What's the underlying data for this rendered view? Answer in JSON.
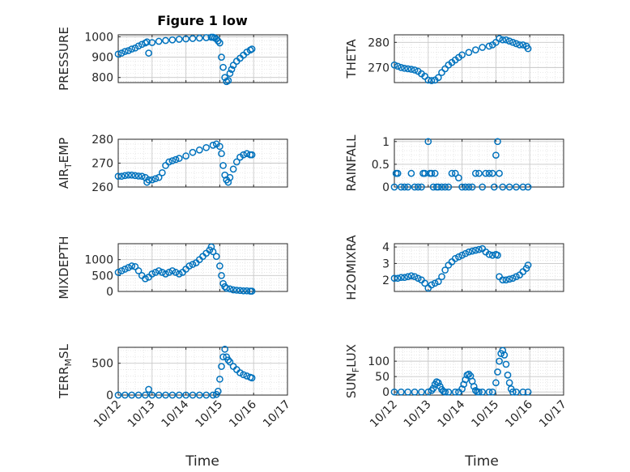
{
  "figure": {
    "title": "Figure 1 low",
    "xlabel": "Time"
  },
  "colors": {
    "marker": "#0072BD",
    "axis": "#262626",
    "grid": "#c8c8c8",
    "minor_grid": "#dedede"
  },
  "chart_data": [
    {
      "type": "scatter",
      "ylabel": "PRESSURE",
      "ylim": [
        775,
        1010
      ],
      "yticks": [
        "800",
        "900",
        "1000"
      ],
      "yticks_v": [
        800,
        900,
        1000
      ],
      "x_days": [
        12.0,
        12.1,
        12.2,
        12.3,
        12.4,
        12.5,
        12.6,
        12.7,
        12.8,
        12.85,
        12.9,
        13.0,
        13.2,
        13.4,
        13.6,
        13.8,
        14.0,
        14.2,
        14.4,
        14.6,
        14.75,
        14.8,
        14.85,
        14.9,
        14.95,
        15.0,
        15.05,
        15.1,
        15.15,
        15.2,
        15.25,
        15.3,
        15.35,
        15.4,
        15.5,
        15.6,
        15.7,
        15.8,
        15.9,
        15.95
      ],
      "y": [
        915,
        920,
        928,
        932,
        940,
        945,
        955,
        963,
        970,
        975,
        920,
        972,
        978,
        982,
        985,
        988,
        990,
        992,
        994,
        996,
        998,
        998,
        995,
        990,
        980,
        970,
        900,
        850,
        800,
        780,
        785,
        820,
        840,
        860,
        880,
        895,
        910,
        925,
        935,
        940
      ],
      "xtick_labels": [
        "",
        "",
        "",
        "",
        "",
        ""
      ]
    },
    {
      "type": "scatter",
      "ylabel": "THETA",
      "ylim": [
        264,
        283
      ],
      "yticks": [
        "270",
        "280"
      ],
      "yticks_v": [
        270,
        280
      ],
      "x_days": [
        12.0,
        12.1,
        12.2,
        12.3,
        12.4,
        12.5,
        12.6,
        12.7,
        12.8,
        12.9,
        13.0,
        13.1,
        13.2,
        13.3,
        13.4,
        13.5,
        13.6,
        13.7,
        13.8,
        13.9,
        14.0,
        14.2,
        14.4,
        14.6,
        14.8,
        14.9,
        15.0,
        15.1,
        15.2,
        15.3,
        15.4,
        15.5,
        15.6,
        15.7,
        15.8,
        15.9,
        15.95
      ],
      "y": [
        271,
        270.5,
        270,
        269.7,
        269.5,
        269.3,
        269,
        268.5,
        267.5,
        266.5,
        265,
        264.8,
        265,
        266,
        268,
        269.5,
        271,
        272,
        273,
        274,
        275,
        276,
        277,
        278,
        278.5,
        279,
        280,
        281.5,
        281,
        281,
        280.5,
        280,
        279.5,
        279,
        279,
        278.5,
        277.5
      ],
      "xtick_labels": [
        "",
        "",
        "",
        "",
        "",
        ""
      ]
    },
    {
      "type": "scatter",
      "ylabel": "AIR_TEMP",
      "ylim": [
        260,
        280
      ],
      "yticks": [
        "260",
        "270",
        "280"
      ],
      "yticks_v": [
        260,
        270,
        280
      ],
      "x_days": [
        12.0,
        12.1,
        12.2,
        12.3,
        12.4,
        12.5,
        12.6,
        12.7,
        12.8,
        12.85,
        12.9,
        13.0,
        13.1,
        13.2,
        13.3,
        13.4,
        13.5,
        13.6,
        13.7,
        13.8,
        14.0,
        14.2,
        14.4,
        14.6,
        14.8,
        14.9,
        15.0,
        15.05,
        15.1,
        15.15,
        15.2,
        15.25,
        15.3,
        15.4,
        15.5,
        15.6,
        15.7,
        15.8,
        15.9,
        15.95
      ],
      "y": [
        264.5,
        264.5,
        264.8,
        265,
        265,
        264.8,
        264.6,
        264.5,
        264,
        262,
        263,
        263,
        263.5,
        264,
        266,
        269,
        270.5,
        271,
        271.5,
        272,
        273,
        274.5,
        275.5,
        276.5,
        277.5,
        278,
        277,
        274,
        269,
        265,
        263,
        262,
        264,
        267.5,
        270.5,
        272.5,
        273.5,
        274,
        273.5,
        273.5
      ],
      "xtick_labels": [
        "",
        "",
        "",
        "",
        "",
        ""
      ]
    },
    {
      "type": "scatter",
      "ylabel": "RAINFALL",
      "ylim": [
        0,
        1.05
      ],
      "yticks": [
        "0",
        "0.5",
        "1"
      ],
      "yticks_v": [
        0,
        0.5,
        1
      ],
      "x_days": [
        12.0,
        12.05,
        12.1,
        12.2,
        12.3,
        12.4,
        12.5,
        12.6,
        12.7,
        12.8,
        12.85,
        12.9,
        13.0,
        13.05,
        13.1,
        13.15,
        13.2,
        13.25,
        13.3,
        13.4,
        13.5,
        13.6,
        13.7,
        13.8,
        13.9,
        14.0,
        14.1,
        14.2,
        14.3,
        14.4,
        14.5,
        14.6,
        14.7,
        14.8,
        14.9,
        14.95,
        15.0,
        15.05,
        15.1,
        15.2,
        15.4,
        15.6,
        15.8,
        15.95
      ],
      "y": [
        0,
        0.3,
        0.3,
        0,
        0,
        0,
        0.3,
        0,
        0,
        0,
        0.3,
        0.3,
        1.0,
        0.3,
        0.3,
        0,
        0.3,
        0,
        0,
        0,
        0,
        0,
        0.3,
        0.3,
        0.2,
        0,
        0,
        0,
        0,
        0.3,
        0.3,
        0,
        0.3,
        0.3,
        0.3,
        0,
        0.7,
        1.0,
        0.3,
        0,
        0,
        0,
        0,
        0
      ],
      "xtick_labels": [
        "",
        "",
        "",
        "",
        "",
        ""
      ]
    },
    {
      "type": "scatter",
      "ylabel": "MIXDEPTH",
      "ylim": [
        0,
        1500
      ],
      "yticks": [
        "0",
        "500",
        "1000"
      ],
      "yticks_v": [
        0,
        500,
        1000
      ],
      "x_days": [
        12.0,
        12.1,
        12.2,
        12.3,
        12.4,
        12.5,
        12.6,
        12.7,
        12.8,
        12.9,
        13.0,
        13.1,
        13.2,
        13.3,
        13.4,
        13.5,
        13.6,
        13.7,
        13.8,
        13.9,
        14.0,
        14.1,
        14.2,
        14.3,
        14.4,
        14.5,
        14.6,
        14.7,
        14.75,
        14.8,
        14.9,
        15.0,
        15.05,
        15.1,
        15.15,
        15.2,
        15.3,
        15.4,
        15.5,
        15.6,
        15.7,
        15.8,
        15.9,
        15.95
      ],
      "y": [
        600,
        650,
        700,
        750,
        800,
        780,
        650,
        500,
        400,
        450,
        550,
        600,
        650,
        600,
        550,
        600,
        650,
        600,
        550,
        600,
        700,
        800,
        850,
        900,
        1000,
        1100,
        1200,
        1300,
        1400,
        1250,
        1100,
        800,
        500,
        250,
        150,
        100,
        80,
        50,
        40,
        30,
        20,
        20,
        10,
        10
      ],
      "xtick_labels": [
        "",
        "",
        "",
        "",
        "",
        ""
      ]
    },
    {
      "type": "scatter",
      "ylabel": "H2OMIXRA",
      "ylim": [
        1.3,
        4.2
      ],
      "yticks": [
        "2",
        "3",
        "4"
      ],
      "yticks_v": [
        2,
        3,
        4
      ],
      "x_days": [
        12.0,
        12.1,
        12.2,
        12.3,
        12.4,
        12.5,
        12.6,
        12.7,
        12.8,
        12.9,
        13.0,
        13.1,
        13.2,
        13.3,
        13.4,
        13.5,
        13.6,
        13.7,
        13.8,
        13.9,
        14.0,
        14.1,
        14.2,
        14.3,
        14.4,
        14.5,
        14.6,
        14.7,
        14.8,
        14.9,
        15.0,
        15.05,
        15.1,
        15.2,
        15.3,
        15.4,
        15.5,
        15.6,
        15.7,
        15.8,
        15.9,
        15.95
      ],
      "y": [
        2.1,
        2.1,
        2.15,
        2.15,
        2.2,
        2.25,
        2.2,
        2.1,
        2.0,
        1.8,
        1.5,
        1.7,
        1.8,
        1.9,
        2.2,
        2.6,
        2.9,
        3.1,
        3.3,
        3.4,
        3.5,
        3.6,
        3.7,
        3.75,
        3.8,
        3.85,
        3.9,
        3.7,
        3.55,
        3.5,
        3.55,
        3.5,
        2.2,
        2.0,
        2.0,
        2.05,
        2.1,
        2.2,
        2.3,
        2.5,
        2.7,
        2.9
      ],
      "xtick_labels": [
        "",
        "",
        "",
        "",
        "",
        ""
      ]
    },
    {
      "type": "scatter",
      "ylabel": "TERR_MSL",
      "ylim": [
        0,
        750
      ],
      "yticks": [
        "0",
        "500"
      ],
      "yticks_v": [
        0,
        500
      ],
      "x_days": [
        12.0,
        12.2,
        12.4,
        12.6,
        12.8,
        12.9,
        13.0,
        13.2,
        13.4,
        13.6,
        13.8,
        14.0,
        14.2,
        14.4,
        14.6,
        14.8,
        14.9,
        14.95,
        15.0,
        15.05,
        15.1,
        15.15,
        15.2,
        15.25,
        15.3,
        15.4,
        15.5,
        15.6,
        15.7,
        15.8,
        15.9,
        15.95
      ],
      "y": [
        0,
        0,
        0,
        0,
        0,
        90,
        0,
        0,
        0,
        0,
        0,
        0,
        0,
        0,
        0,
        0,
        10,
        60,
        250,
        450,
        600,
        720,
        600,
        550,
        520,
        450,
        400,
        350,
        320,
        300,
        280,
        270
      ],
      "xtick_labels": [
        "10/12",
        "10/13",
        "10/14",
        "10/15",
        "10/16",
        "10/17"
      ]
    },
    {
      "type": "scatter",
      "ylabel": "SUN_FLUX",
      "ylim": [
        -10,
        145
      ],
      "yticks": [
        "0",
        "50",
        "100"
      ],
      "yticks_v": [
        0,
        50,
        100
      ],
      "x_days": [
        12.0,
        12.2,
        12.4,
        12.6,
        12.8,
        13.0,
        13.1,
        13.15,
        13.2,
        13.25,
        13.3,
        13.35,
        13.4,
        13.45,
        13.5,
        13.6,
        13.8,
        13.9,
        14.0,
        14.05,
        14.1,
        14.15,
        14.2,
        14.25,
        14.3,
        14.35,
        14.4,
        14.45,
        14.5,
        14.6,
        14.8,
        14.9,
        15.0,
        15.05,
        15.1,
        15.15,
        15.2,
        15.25,
        15.3,
        15.35,
        15.4,
        15.45,
        15.5,
        15.6,
        15.8,
        15.95
      ],
      "y": [
        0,
        0,
        0,
        0,
        0,
        0,
        5,
        12,
        25,
        33,
        30,
        18,
        8,
        2,
        0,
        0,
        0,
        0,
        10,
        25,
        40,
        55,
        58,
        52,
        35,
        18,
        5,
        0,
        0,
        0,
        0,
        0,
        30,
        65,
        100,
        125,
        135,
        120,
        90,
        55,
        30,
        10,
        0,
        0,
        0,
        0
      ],
      "xtick_labels": [
        "10/12",
        "10/13",
        "10/14",
        "10/15",
        "10/16",
        "10/17"
      ]
    }
  ]
}
